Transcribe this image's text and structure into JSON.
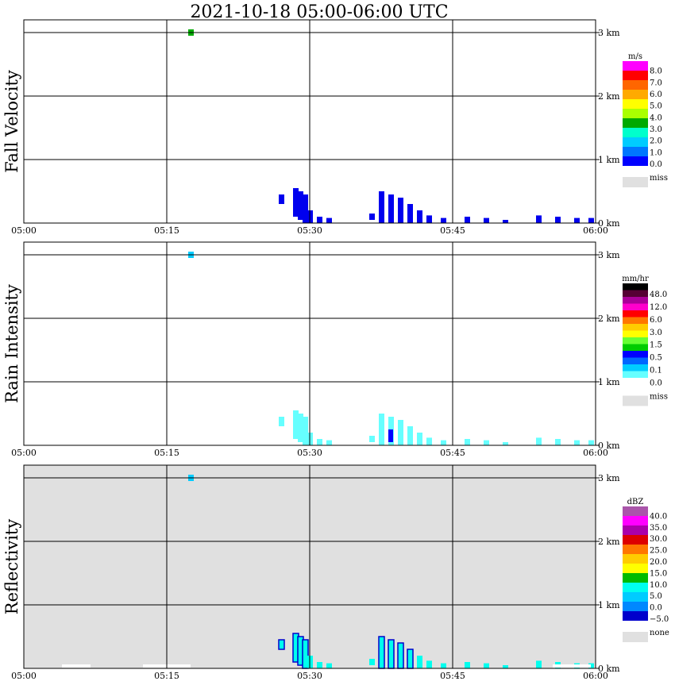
{
  "title": "2021-10-18   05:00-06:00 UTC",
  "time_ticks": [
    "05:00",
    "05:15",
    "05:30",
    "05:45",
    "06:00"
  ],
  "height_ticks": [
    "0 km",
    "1 km",
    "2 km",
    "3 km"
  ],
  "panels": [
    {
      "id": "fall-velocity",
      "ylabel": "Fall Velocity",
      "background": "#ffffff",
      "legend": {
        "unit": "m/s",
        "colors": [
          "#ff00ff",
          "#ff0000",
          "#ff6600",
          "#ffaa00",
          "#ffff00",
          "#aaff00",
          "#00aa00",
          "#00ffcc",
          "#00ccff",
          "#0077ff",
          "#0000ff"
        ],
        "labels": [
          "8.0",
          "7.0",
          "6.0",
          "5.0",
          "4.0",
          "3.0",
          "2.0",
          "1.0",
          "0.0"
        ],
        "miss_label": "miss"
      }
    },
    {
      "id": "rain-intensity",
      "ylabel": "Rain Intensity",
      "background": "#ffffff",
      "legend": {
        "unit": "mm/hr",
        "colors": [
          "#000000",
          "#550033",
          "#aa0099",
          "#ff00cc",
          "#ff0000",
          "#ff7700",
          "#ffcc00",
          "#ffff00",
          "#66ff33",
          "#00cc00",
          "#0000ff",
          "#0066ff",
          "#00ccff",
          "#66ffff",
          "#ffffff"
        ],
        "labels": [
          "48.0",
          "12.0",
          "6.0",
          "3.0",
          "1.5",
          "0.5",
          "0.1",
          "0.0"
        ],
        "miss_label": "miss"
      }
    },
    {
      "id": "reflectivity",
      "ylabel": "Reflectivity",
      "background": "#e0e0e0",
      "legend": {
        "unit": "dBZ",
        "colors": [
          "#aa55aa",
          "#ff00ff",
          "#aa00aa",
          "#dd0000",
          "#ff7700",
          "#ffcc00",
          "#ffff00",
          "#00bb00",
          "#00ffee",
          "#00ccff",
          "#0088ff",
          "#0000cc"
        ],
        "labels": [
          "40.0",
          "35.0",
          "30.0",
          "25.0",
          "20.0",
          "15.0",
          "10.0",
          "5.0",
          "0.0",
          "−5.0"
        ],
        "miss_label": "none"
      }
    }
  ],
  "chart_data": {
    "type": "heatmap",
    "title": "2021-10-18   05:00-06:00 UTC",
    "xlabel": "",
    "x_range": [
      "05:00",
      "06:00"
    ],
    "y_range_km": [
      0,
      3.5
    ],
    "y_ticks_km": [
      0,
      1,
      2,
      3
    ],
    "echo_columns": [
      {
        "t": 17.5,
        "top_km": 3.05,
        "bottom_km": 2.95
      },
      {
        "t": 27.0,
        "top_km": 0.45,
        "bottom_km": 0.3
      },
      {
        "t": 28.5,
        "top_km": 0.55,
        "bottom_km": 0.1
      },
      {
        "t": 29.0,
        "top_km": 0.5,
        "bottom_km": 0.05
      },
      {
        "t": 29.5,
        "top_km": 0.45,
        "bottom_km": 0.0
      },
      {
        "t": 30.0,
        "top_km": 0.2,
        "bottom_km": 0.0
      },
      {
        "t": 31.0,
        "top_km": 0.1,
        "bottom_km": 0.0
      },
      {
        "t": 32.0,
        "top_km": 0.08,
        "bottom_km": 0.0
      },
      {
        "t": 36.5,
        "top_km": 0.15,
        "bottom_km": 0.05
      },
      {
        "t": 37.5,
        "top_km": 0.5,
        "bottom_km": 0.0
      },
      {
        "t": 38.5,
        "top_km": 0.45,
        "bottom_km": 0.0
      },
      {
        "t": 39.5,
        "top_km": 0.4,
        "bottom_km": 0.0
      },
      {
        "t": 40.5,
        "top_km": 0.3,
        "bottom_km": 0.0
      },
      {
        "t": 41.5,
        "top_km": 0.2,
        "bottom_km": 0.0
      },
      {
        "t": 42.5,
        "top_km": 0.12,
        "bottom_km": 0.0
      },
      {
        "t": 44.0,
        "top_km": 0.08,
        "bottom_km": 0.0
      },
      {
        "t": 46.5,
        "top_km": 0.1,
        "bottom_km": 0.0
      },
      {
        "t": 48.5,
        "top_km": 0.08,
        "bottom_km": 0.0
      },
      {
        "t": 50.5,
        "top_km": 0.05,
        "bottom_km": 0.0
      },
      {
        "t": 54.0,
        "top_km": 0.12,
        "bottom_km": 0.0
      },
      {
        "t": 56.0,
        "top_km": 0.1,
        "bottom_km": 0.0
      },
      {
        "t": 58.0,
        "top_km": 0.08,
        "bottom_km": 0.0
      },
      {
        "t": 59.5,
        "top_km": 0.08,
        "bottom_km": 0.0
      }
    ],
    "grid": true
  }
}
